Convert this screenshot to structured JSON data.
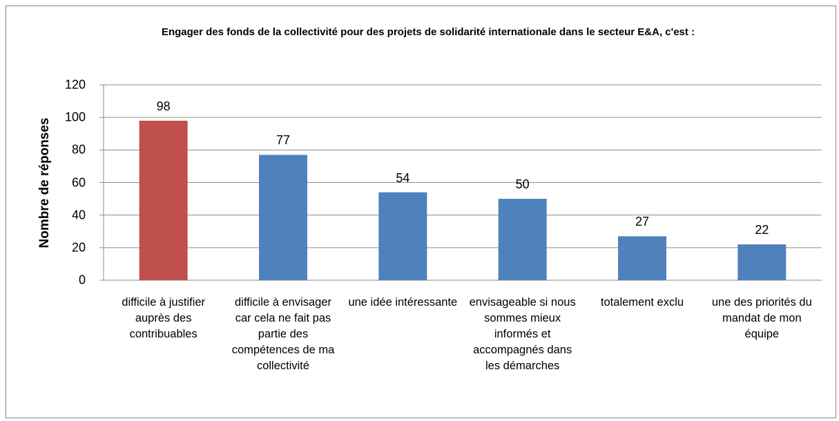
{
  "chart_data": {
    "type": "bar",
    "title": "Engager des fonds de la collectivité pour des projets de solidarité internationale dans le secteur E&A, c'est :",
    "y_label": "Nombre de réponses",
    "categories": [
      "difficile à justifier auprès des contribuables",
      "difficile à envisager car cela ne fait pas partie des compétences de ma collectivité",
      "une idée intéressante",
      "envisageable si nous sommes mieux informés et accompagnés dans les démarches",
      "totalement exclu",
      "une des priorités du mandat de mon équipe"
    ],
    "values": [
      98,
      77,
      54,
      50,
      27,
      22
    ],
    "colors": [
      "#c0504d",
      "#4f81bd",
      "#4f81bd",
      "#4f81bd",
      "#4f81bd",
      "#4f81bd"
    ],
    "ylim": [
      0,
      120
    ],
    "yticks": [
      0,
      20,
      40,
      60,
      80,
      100,
      120
    ],
    "grid": true
  }
}
